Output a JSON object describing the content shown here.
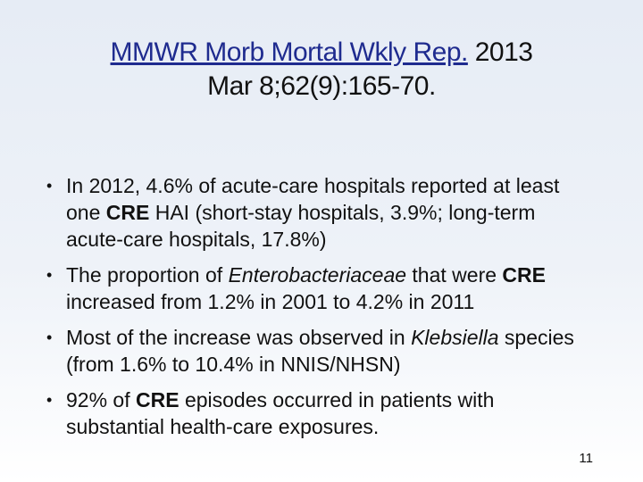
{
  "title": {
    "journal": "MMWR Morb Mortal Wkly Rep.",
    "year": "2013",
    "citation": "Mar 8;62(9):165-70."
  },
  "bullets": [
    {
      "parts": [
        {
          "text": "In 2012, 4.6% of acute-care hospitals reported at least one ",
          "style": "normal"
        },
        {
          "text": "CRE",
          "style": "bold"
        },
        {
          "text": " HAI (short-stay hospitals, 3.9%; long-term acute-care hospitals, 17.8%)",
          "style": "normal"
        }
      ]
    },
    {
      "parts": [
        {
          "text": "The proportion of ",
          "style": "normal"
        },
        {
          "text": "Enterobacteriaceae",
          "style": "italic"
        },
        {
          "text": " that were ",
          "style": "normal"
        },
        {
          "text": "CRE",
          "style": "bold"
        },
        {
          "text": " increased from 1.2% in 2001 to 4.2% in 2011",
          "style": "normal"
        }
      ]
    },
    {
      "parts": [
        {
          "text": "Most of the increase was observed in ",
          "style": "normal"
        },
        {
          "text": "Klebsiella",
          "style": "italic"
        },
        {
          "text": " species (from 1.6% to 10.4% in NNIS/NHSN)",
          "style": "normal"
        }
      ]
    },
    {
      "parts": [
        {
          "text": " 92% of ",
          "style": "normal"
        },
        {
          "text": "CRE",
          "style": "bold"
        },
        {
          "text": " episodes occurred in patients with substantial health-care exposures.",
          "style": "normal"
        }
      ]
    }
  ],
  "page_number": "11",
  "colors": {
    "link": "#1f2b8f"
  }
}
